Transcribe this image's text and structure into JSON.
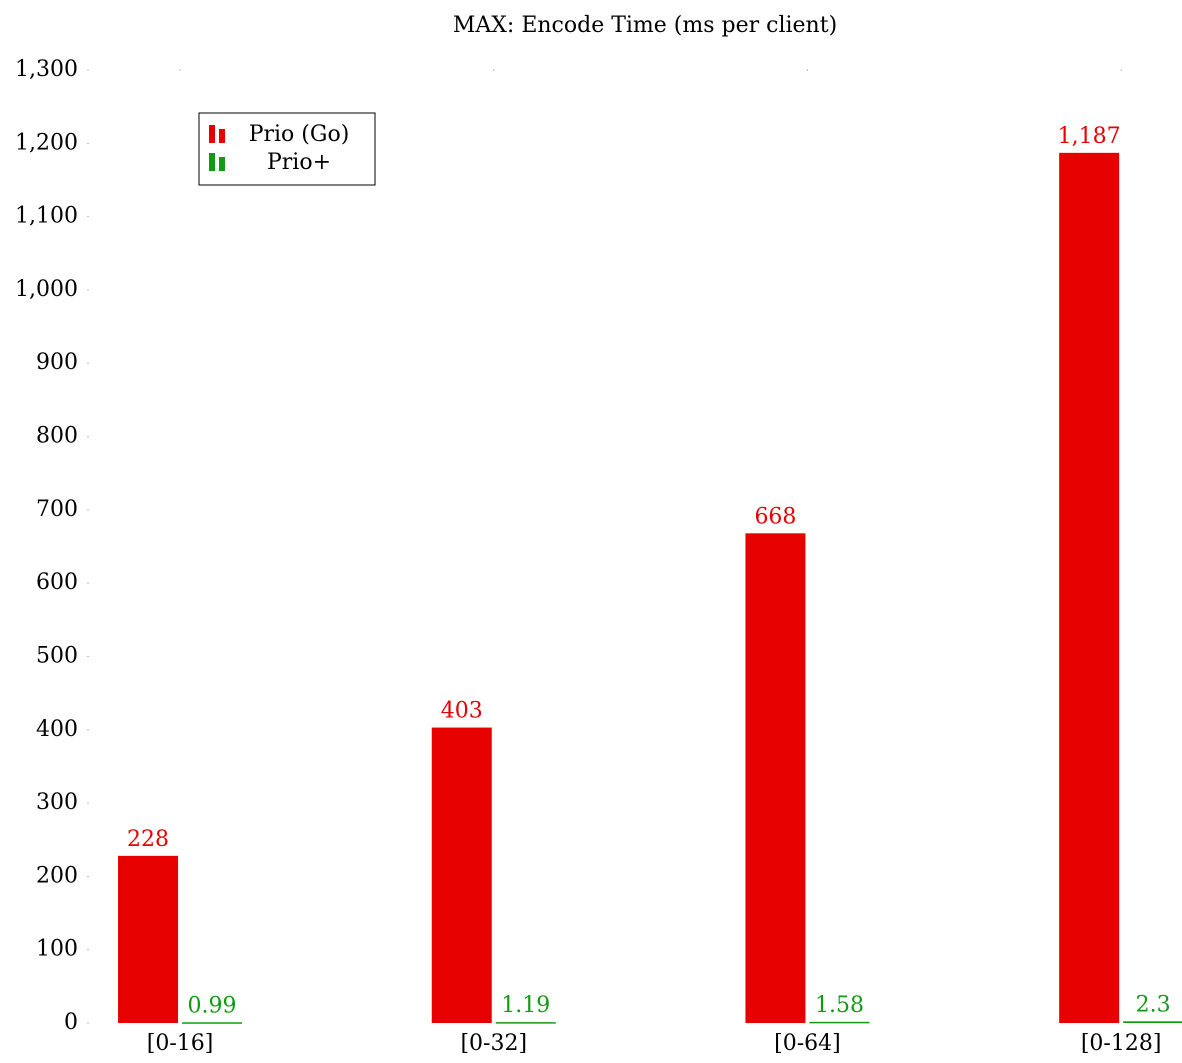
{
  "chart_data": {
    "type": "bar",
    "title": "MAX: Encode Time (ms per client)",
    "categories": [
      "[0-16]",
      "[0-32]",
      "[0-64]",
      "[0-128]"
    ],
    "series": [
      {
        "name": "Prio (Go)",
        "color": "#e60000",
        "values": [
          228,
          403,
          668,
          1187
        ],
        "value_labels": [
          "228",
          "403",
          "668",
          "1,187"
        ]
      },
      {
        "name": "Prio+",
        "color": "#139a13",
        "values": [
          0.99,
          1.19,
          1.58,
          2.3
        ]
      }
    ],
    "ylim": [
      0,
      1300
    ],
    "yticks": [
      0,
      100,
      200,
      300,
      400,
      500,
      600,
      700,
      800,
      900,
      {
        "value": 1000,
        "label": "1,000"
      },
      {
        "value": 1100,
        "label": "1,100"
      },
      {
        "value": 1200,
        "label": "1,200"
      },
      {
        "value": 1300,
        "label": "1,300"
      }
    ],
    "legend": "upper left"
  }
}
